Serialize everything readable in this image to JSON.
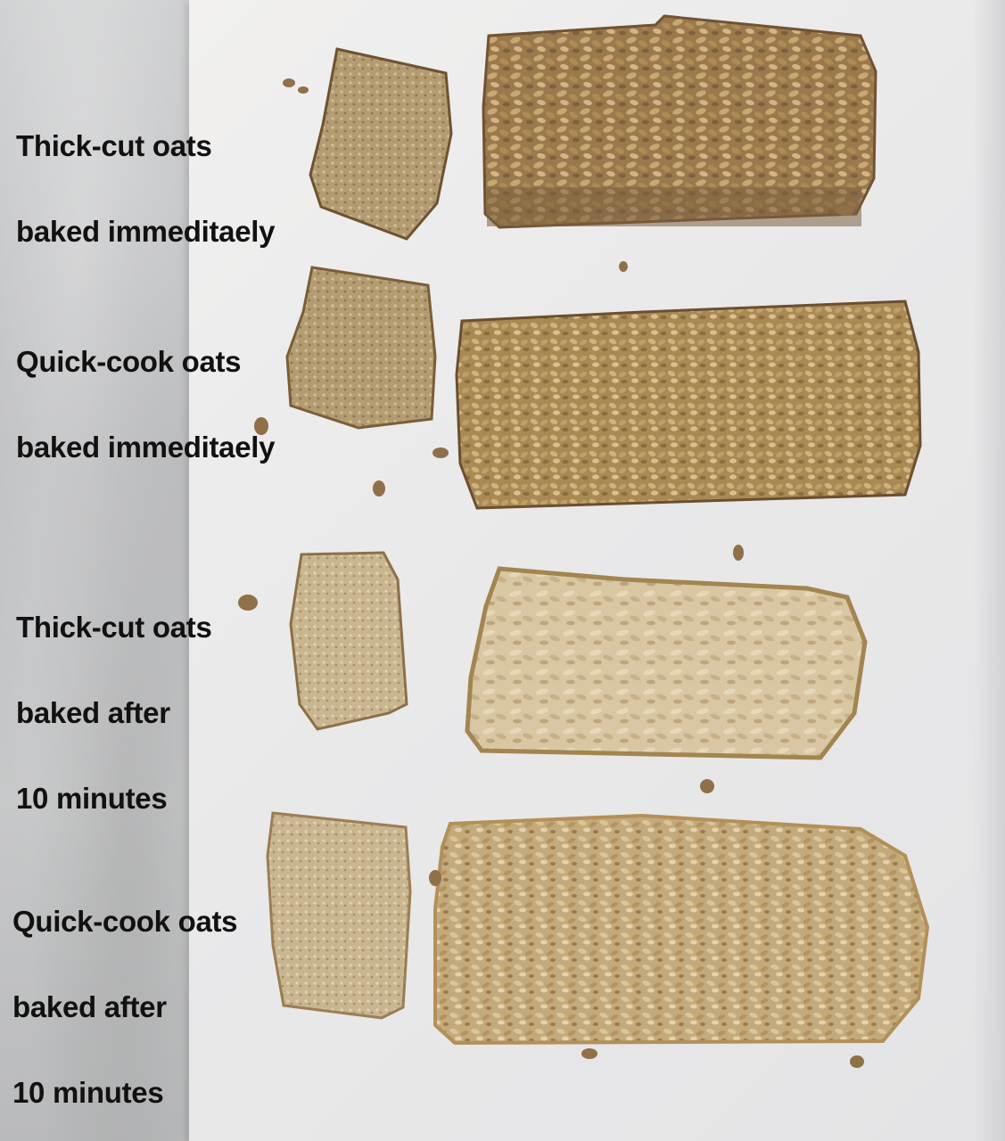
{
  "captions": [
    {
      "line1": "Thick-cut oats",
      "line2": "baked immeditaely",
      "line3": ""
    },
    {
      "line1": "Quick-cook oats",
      "line2": "baked immeditaely",
      "line3": ""
    },
    {
      "line1": "Thick-cut oats",
      "line2": "baked after",
      "line3": "10 minutes"
    },
    {
      "line1": "Quick-cook oats",
      "line2": "baked after",
      "line3": "10 minutes"
    }
  ],
  "colors": {
    "surface": "#c6c7c8",
    "plate": "#ecebea",
    "oat_dark": "#8a6c44",
    "oat_golden": "#b8955e",
    "oat_light": "#d7c3a0",
    "crumb_pale": "#cdb794",
    "text": "#111111"
  }
}
